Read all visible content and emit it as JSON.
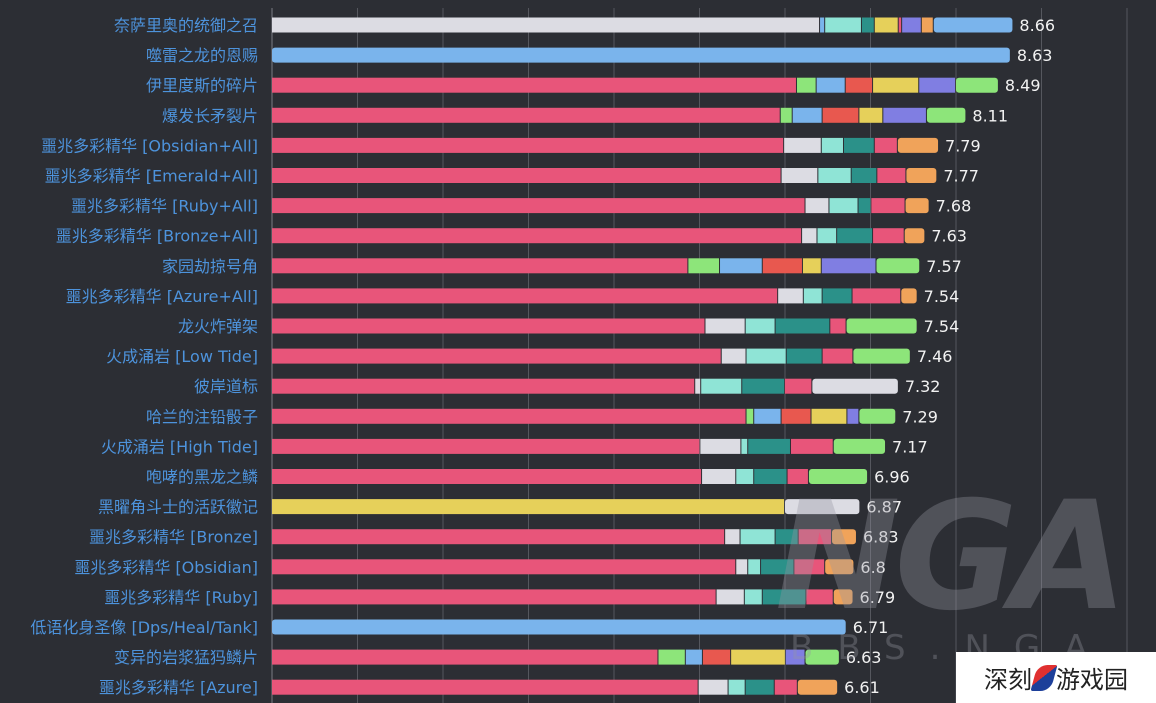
{
  "chart_data": {
    "type": "bar",
    "orientation": "horizontal",
    "stacked": true,
    "xlim": [
      0,
      10
    ],
    "grid": true,
    "colors": {
      "pink": "#e8557a",
      "green": "#8de57a",
      "blue": "#7ab4ec",
      "red": "#e8584f",
      "yellow": "#e6d05a",
      "purple": "#807ee2",
      "light": "#dcdce3",
      "cyan": "#8fe4d6",
      "teal": "#2b9189",
      "orange": "#f0a35a"
    },
    "rows": [
      {
        "label": "奈萨里奥的统御之召",
        "total": 8.66,
        "segments": [
          [
            "light",
            6.41
          ],
          [
            "blue",
            0.06
          ],
          [
            "cyan",
            0.43
          ],
          [
            "teal",
            0.15
          ],
          [
            "yellow",
            0.28
          ],
          [
            "pink",
            0.04
          ],
          [
            "purple",
            0.23
          ],
          [
            "orange",
            0.14
          ],
          [
            "blue",
            0.92
          ]
        ]
      },
      {
        "label": "噬雷之龙的恩赐",
        "total": 8.63,
        "segments": [
          [
            "blue",
            8.63
          ]
        ]
      },
      {
        "label": "伊里度斯的碎片",
        "total": 8.49,
        "segments": [
          [
            "pink",
            6.14
          ],
          [
            "green",
            0.23
          ],
          [
            "blue",
            0.34
          ],
          [
            "red",
            0.32
          ],
          [
            "yellow",
            0.54
          ],
          [
            "purple",
            0.43
          ],
          [
            "green",
            0.49
          ]
        ]
      },
      {
        "label": "爆发长矛裂片",
        "total": 8.11,
        "segments": [
          [
            "pink",
            5.95
          ],
          [
            "green",
            0.14
          ],
          [
            "blue",
            0.35
          ],
          [
            "red",
            0.43
          ],
          [
            "yellow",
            0.28
          ],
          [
            "purple",
            0.51
          ],
          [
            "green",
            0.45
          ]
        ]
      },
      {
        "label": "噩兆多彩精华 [Obsidian+All]",
        "total": 7.79,
        "segments": [
          [
            "pink",
            5.99
          ],
          [
            "light",
            0.44
          ],
          [
            "cyan",
            0.26
          ],
          [
            "teal",
            0.36
          ],
          [
            "pink",
            0.27
          ],
          [
            "orange",
            0.47
          ]
        ]
      },
      {
        "label": "噩兆多彩精华 [Emerald+All]",
        "total": 7.77,
        "segments": [
          [
            "pink",
            5.96
          ],
          [
            "light",
            0.43
          ],
          [
            "cyan",
            0.39
          ],
          [
            "teal",
            0.3
          ],
          [
            "pink",
            0.34
          ],
          [
            "orange",
            0.35
          ]
        ]
      },
      {
        "label": "噩兆多彩精华 [Ruby+All]",
        "total": 7.68,
        "segments": [
          [
            "pink",
            6.24
          ],
          [
            "light",
            0.28
          ],
          [
            "cyan",
            0.34
          ],
          [
            "teal",
            0.15
          ],
          [
            "pink",
            0.4
          ],
          [
            "orange",
            0.27
          ]
        ]
      },
      {
        "label": "噩兆多彩精华 [Bronze+All]",
        "total": 7.63,
        "segments": [
          [
            "pink",
            6.2
          ],
          [
            "light",
            0.18
          ],
          [
            "cyan",
            0.23
          ],
          [
            "teal",
            0.42
          ],
          [
            "pink",
            0.37
          ],
          [
            "orange",
            0.23
          ]
        ]
      },
      {
        "label": "家园劫掠号角",
        "total": 7.57,
        "segments": [
          [
            "pink",
            4.87
          ],
          [
            "green",
            0.37
          ],
          [
            "blue",
            0.5
          ],
          [
            "red",
            0.47
          ],
          [
            "yellow",
            0.22
          ],
          [
            "purple",
            0.64
          ],
          [
            "green",
            0.5
          ]
        ]
      },
      {
        "label": "噩兆多彩精华 [Azure+All]",
        "total": 7.54,
        "segments": [
          [
            "pink",
            5.92
          ],
          [
            "light",
            0.3
          ],
          [
            "cyan",
            0.22
          ],
          [
            "teal",
            0.35
          ],
          [
            "pink",
            0.57
          ],
          [
            "orange",
            0.18
          ]
        ]
      },
      {
        "label": "龙火炸弹架",
        "total": 7.54,
        "segments": [
          [
            "pink",
            5.07
          ],
          [
            "light",
            0.47
          ],
          [
            "cyan",
            0.35
          ],
          [
            "teal",
            0.64
          ],
          [
            "pink",
            0.19
          ],
          [
            "green",
            0.82
          ]
        ]
      },
      {
        "label": "火成涌岩 [Low Tide]",
        "total": 7.46,
        "segments": [
          [
            "pink",
            5.26
          ],
          [
            "light",
            0.29
          ],
          [
            "cyan",
            0.47
          ],
          [
            "teal",
            0.42
          ],
          [
            "pink",
            0.36
          ],
          [
            "green",
            0.66
          ]
        ]
      },
      {
        "label": "彼岸道标",
        "total": 7.32,
        "segments": [
          [
            "pink",
            4.95
          ],
          [
            "light",
            0.07
          ],
          [
            "cyan",
            0.48
          ],
          [
            "teal",
            0.5
          ],
          [
            "pink",
            0.32
          ],
          [
            "light",
            1.0
          ]
        ]
      },
      {
        "label": "哈兰的注铅骰子",
        "total": 7.29,
        "segments": [
          [
            "pink",
            5.55
          ],
          [
            "green",
            0.09
          ],
          [
            "blue",
            0.32
          ],
          [
            "red",
            0.35
          ],
          [
            "yellow",
            0.42
          ],
          [
            "purple",
            0.14
          ],
          [
            "green",
            0.42
          ]
        ]
      },
      {
        "label": "火成涌岩 [High Tide]",
        "total": 7.17,
        "segments": [
          [
            "pink",
            5.01
          ],
          [
            "light",
            0.48
          ],
          [
            "cyan",
            0.08
          ],
          [
            "teal",
            0.5
          ],
          [
            "pink",
            0.5
          ],
          [
            "green",
            0.6
          ]
        ]
      },
      {
        "label": "咆哮的黑龙之鳞",
        "total": 6.96,
        "segments": [
          [
            "pink",
            5.03
          ],
          [
            "light",
            0.4
          ],
          [
            "cyan",
            0.21
          ],
          [
            "teal",
            0.39
          ],
          [
            "pink",
            0.25
          ],
          [
            "green",
            0.68
          ]
        ]
      },
      {
        "label": "黑曜角斗士的活跃徽记",
        "total": 6.87,
        "segments": [
          [
            "yellow",
            6.0
          ],
          [
            "light",
            0.87
          ]
        ]
      },
      {
        "label": "噩兆多彩精华 [Bronze]",
        "total": 6.83,
        "segments": [
          [
            "pink",
            5.3
          ],
          [
            "light",
            0.18
          ],
          [
            "cyan",
            0.41
          ],
          [
            "teal",
            0.27
          ],
          [
            "pink",
            0.39
          ],
          [
            "orange",
            0.28
          ]
        ]
      },
      {
        "label": "噩兆多彩精华 [Obsidian]",
        "total": 6.8,
        "segments": [
          [
            "pink",
            5.43
          ],
          [
            "light",
            0.14
          ],
          [
            "cyan",
            0.15
          ],
          [
            "teal",
            0.39
          ],
          [
            "pink",
            0.36
          ],
          [
            "orange",
            0.33
          ]
        ]
      },
      {
        "label": "噩兆多彩精华 [Ruby]",
        "total": 6.79,
        "segments": [
          [
            "pink",
            5.2
          ],
          [
            "light",
            0.33
          ],
          [
            "cyan",
            0.21
          ],
          [
            "teal",
            0.51
          ],
          [
            "pink",
            0.32
          ],
          [
            "orange",
            0.22
          ]
        ]
      },
      {
        "label": "低语化身圣像 [Dps/Heal/Tank]",
        "total": 6.71,
        "segments": [
          [
            "blue",
            6.71
          ]
        ]
      },
      {
        "label": "变异的岩浆猛犸鳞片",
        "total": 6.63,
        "segments": [
          [
            "pink",
            4.52
          ],
          [
            "green",
            0.32
          ],
          [
            "blue",
            0.2
          ],
          [
            "red",
            0.33
          ],
          [
            "yellow",
            0.64
          ],
          [
            "purple",
            0.23
          ],
          [
            "green",
            0.39
          ]
        ]
      },
      {
        "label": "噩兆多彩精华 [Azure]",
        "total": 6.61,
        "segments": [
          [
            "pink",
            4.99
          ],
          [
            "light",
            0.35
          ],
          [
            "cyan",
            0.2
          ],
          [
            "teal",
            0.34
          ],
          [
            "pink",
            0.27
          ],
          [
            "orange",
            0.46
          ]
        ]
      }
    ]
  },
  "watermark": {
    "main": "NGA",
    "sub": "BBS.NGA"
  },
  "logo": {
    "left": "深刻",
    "right": "游戏园"
  }
}
